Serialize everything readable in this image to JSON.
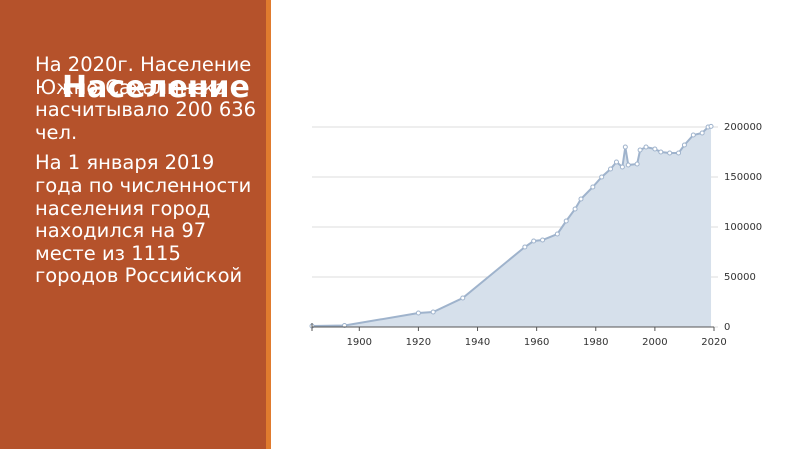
{
  "slide": {
    "title": "Население",
    "paragraphs": [
      "На 2020г. Население Южно-Сахалинска насчитывало 200 636 чел.",
      "На 1 января 2019 года по численности населения город находился на 97 месте из 1115 городов Российской"
    ]
  },
  "chart_data": {
    "type": "area",
    "x": [
      1884,
      1895,
      1920,
      1925,
      1935,
      1956,
      1959,
      1962,
      1967,
      1970,
      1973,
      1975,
      1979,
      1982,
      1985,
      1987,
      1989,
      1990,
      1991,
      1994,
      1995,
      1997,
      2000,
      2002,
      2005,
      2008,
      2010,
      2013,
      2016,
      2018,
      2019
    ],
    "values": [
      1000,
      1500,
      14000,
      15000,
      29000,
      80000,
      86000,
      87000,
      93000,
      106000,
      118000,
      128000,
      140000,
      150000,
      158000,
      165000,
      160000,
      180000,
      162000,
      163000,
      177000,
      180000,
      178000,
      175000,
      174000,
      174000,
      182000,
      192000,
      194000,
      200000,
      200636
    ],
    "color": "#9fb3cc",
    "xlim": [
      1884,
      2020
    ],
    "xticks": [
      1900,
      1920,
      1940,
      1960,
      1980,
      2000,
      2020
    ],
    "ylim": [
      0,
      200000
    ],
    "yticks": [
      0,
      50000,
      100000,
      150000,
      200000
    ],
    "grid": true
  }
}
